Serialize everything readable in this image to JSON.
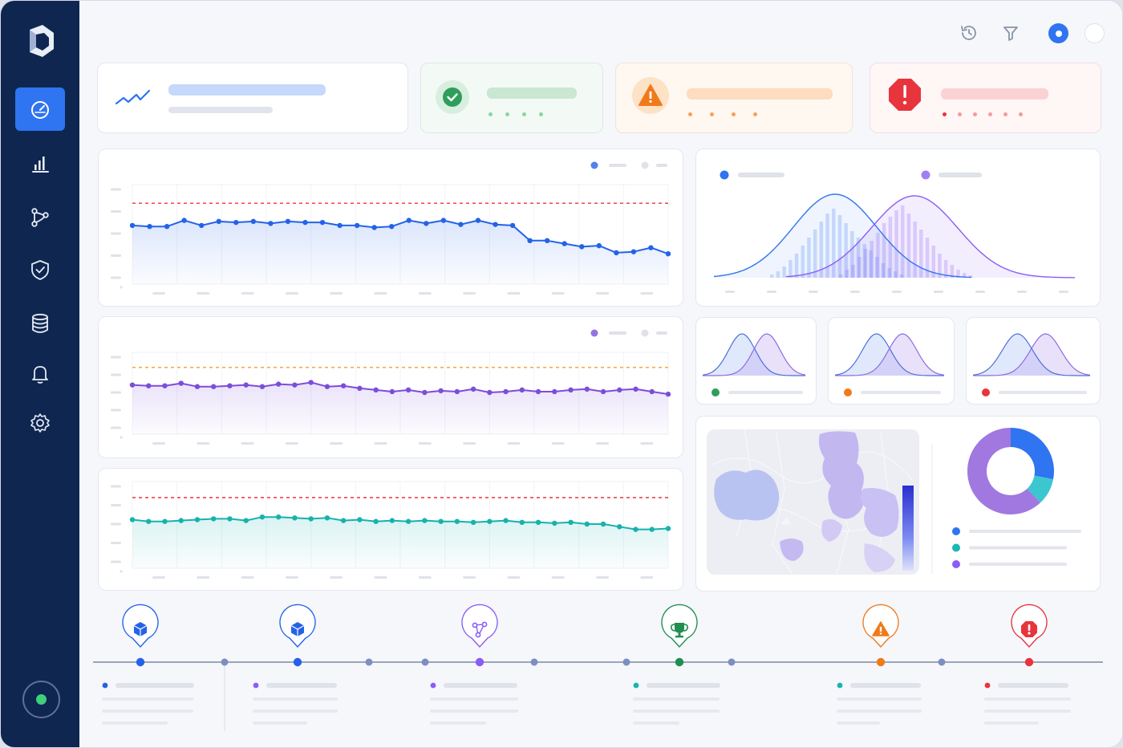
{
  "theme": {
    "sidebar_bg": "#0f2650",
    "accent": "#2f74f0",
    "success": "#2f9e5b",
    "warning": "#f07a1a",
    "danger": "#e8343c",
    "purple": "#8b5cf6",
    "teal": "#19b3b0"
  },
  "sidebar": {
    "logo_icon": "brand-logo-icon",
    "items": [
      {
        "id": "dashboard",
        "icon": "gauge-icon",
        "active": true
      },
      {
        "id": "analytics",
        "icon": "bar-chart-icon",
        "active": false
      },
      {
        "id": "workflows",
        "icon": "branch-icon",
        "active": false
      },
      {
        "id": "security",
        "icon": "shield-check-icon",
        "active": false
      },
      {
        "id": "database",
        "icon": "database-icon",
        "active": false
      },
      {
        "id": "alerts",
        "icon": "bell-icon",
        "active": false
      },
      {
        "id": "settings",
        "icon": "gear-icon",
        "active": false
      }
    ],
    "connection_status": "online"
  },
  "toolbar": {
    "icons": [
      "history-icon",
      "filter-icon"
    ],
    "toggles": [
      true,
      false
    ]
  },
  "summary_cards": [
    {
      "kind": "trend",
      "icon": "trend-line-icon",
      "color": "#2f74f0"
    },
    {
      "kind": "success",
      "icon": "check-circle-icon",
      "color": "#2f9e5b",
      "dots": 4
    },
    {
      "kind": "warning",
      "icon": "warning-triangle-icon",
      "color": "#f07a1a",
      "dots": 4
    },
    {
      "kind": "error",
      "icon": "error-octagon-icon",
      "color": "#e8343c",
      "dots": 6
    }
  ],
  "line_charts": [
    {
      "color": "#2463e8",
      "threshold_color": "#e8343c",
      "threshold": 80,
      "values": [
        58,
        57,
        57,
        63,
        58,
        62,
        61,
        62,
        60,
        62,
        61,
        61,
        58,
        58,
        56,
        57,
        63,
        60,
        63,
        59,
        63,
        59,
        58,
        43,
        43,
        40,
        37,
        38,
        31,
        32,
        36,
        30
      ],
      "ylim": [
        0,
        100
      ]
    },
    {
      "color": "#7c4ddb",
      "threshold_color": "#f59e2a",
      "threshold": 80,
      "values": [
        59,
        58,
        58,
        61,
        57,
        57,
        58,
        59,
        57,
        60,
        59,
        62,
        57,
        58,
        55,
        53,
        51,
        53,
        50,
        52,
        51,
        54,
        50,
        51,
        53,
        51,
        51,
        53,
        54,
        51,
        53,
        54,
        51,
        48
      ],
      "ylim": [
        0,
        100
      ]
    },
    {
      "color": "#17b2ad",
      "threshold_color": "#e8343c",
      "threshold": 80,
      "values": [
        55,
        53,
        53,
        54,
        55,
        56,
        56,
        54,
        58,
        58,
        57,
        56,
        57,
        54,
        55,
        53,
        54,
        53,
        54,
        53,
        53,
        52,
        53,
        54,
        52,
        52,
        51,
        52,
        50,
        50,
        47,
        44,
        44,
        45
      ],
      "ylim": [
        0,
        100
      ]
    }
  ],
  "distribution_chart": {
    "series_colors": [
      "#2f74f0",
      "#8b5cf6"
    ],
    "bars_a": [
      4,
      8,
      14,
      22,
      30,
      40,
      50,
      60,
      70,
      80,
      86,
      78,
      68,
      58,
      50,
      42,
      34,
      26,
      18,
      12,
      8,
      4
    ],
    "bars_b": [
      4,
      10,
      16,
      26,
      36,
      46,
      56,
      68,
      76,
      84,
      90,
      80,
      70,
      60,
      50,
      40,
      30,
      22,
      16,
      10,
      6,
      3
    ]
  },
  "mini_distributions": [
    {
      "status_color": "#2f9e5b"
    },
    {
      "status_color": "#f07a1a"
    },
    {
      "status_color": "#e8343c"
    }
  ],
  "donut": {
    "segments": [
      {
        "value": 28,
        "color": "#2f74f0"
      },
      {
        "value": 10,
        "color": "#3cc6cf"
      },
      {
        "value": 62,
        "color": "#a078e0"
      }
    ],
    "legend_colors": [
      "#2f74f0",
      "#1ab8b5",
      "#8b5cf6"
    ]
  },
  "timeline": {
    "milestones": [
      {
        "icon": "cube-icon",
        "color": "#2463e8"
      },
      {
        "icon": "cube-icon",
        "color": "#2463e8"
      },
      {
        "icon": "network-icon",
        "color": "#8b5cf6"
      },
      {
        "icon": "trophy-icon",
        "color": "#1e8f4f"
      },
      {
        "icon": "warning-triangle-icon",
        "color": "#f07a1a"
      },
      {
        "icon": "error-octagon-icon",
        "color": "#e8343c"
      }
    ],
    "event_colors": [
      "#2463e8",
      "#8b5cf6",
      "#8b5cf6",
      "#19b3b0",
      "#19b3b0",
      "#e8343c"
    ]
  }
}
